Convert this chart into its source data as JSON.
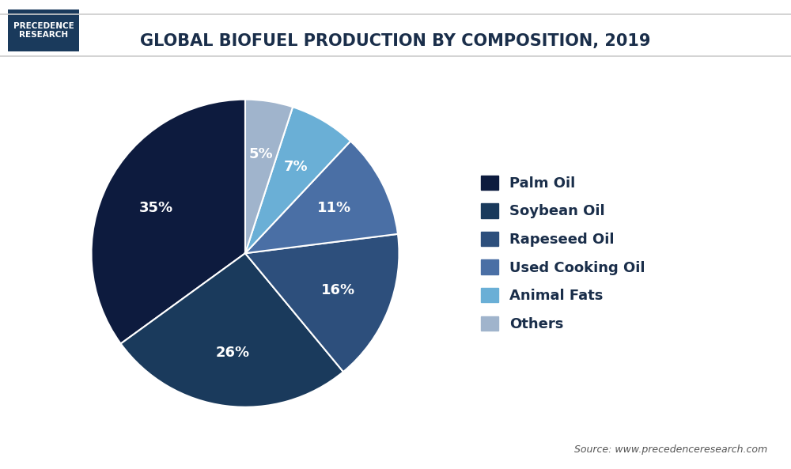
{
  "title": "GLOBAL BIOFUEL PRODUCTION BY COMPOSITION, 2019",
  "labels": [
    "Palm Oil",
    "Soybean Oil",
    "Rapeseed Oil",
    "Used Cooking Oil",
    "Animal Fats",
    "Others"
  ],
  "values": [
    35,
    26,
    16,
    11,
    7,
    5
  ],
  "colors": [
    "#0d1b3e",
    "#1a3a5c",
    "#2d4f7c",
    "#4a6fa5",
    "#6aafd6",
    "#a0b4cc"
  ],
  "pct_labels": [
    "35%",
    "26%",
    "16%",
    "11%",
    "7%",
    "5%"
  ],
  "startangle": 90,
  "background_color": "#ffffff",
  "title_color": "#1a2e4a",
  "source_text": "Source: www.precedenceresearch.com",
  "logo_text": "PRECEDENCE\nRESEARCH"
}
